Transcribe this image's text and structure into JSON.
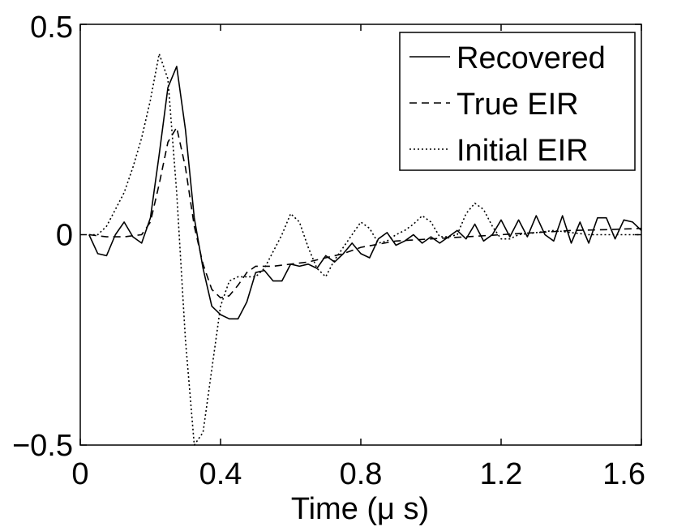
{
  "chart_data": {
    "type": "line",
    "title": "",
    "xlabel": "Time (μ s)",
    "ylabel": "",
    "xlim": [
      0,
      1.6
    ],
    "ylim": [
      -0.5,
      0.5
    ],
    "xticks": [
      0,
      0.4,
      0.8,
      1.2,
      1.6
    ],
    "xtick_labels": [
      "0",
      "0.4",
      "0.8",
      "1.2",
      "1.6"
    ],
    "yticks": [
      -0.5,
      0,
      0.5
    ],
    "ytick_labels": [
      "−0.5",
      "0",
      "0.5"
    ],
    "grid": false,
    "legend_position": "top-right",
    "series": [
      {
        "name": "Recovered",
        "style": "solid",
        "color": "#000000",
        "x": [
          0.025,
          0.05,
          0.075,
          0.1,
          0.125,
          0.15,
          0.175,
          0.2,
          0.225,
          0.25,
          0.275,
          0.3,
          0.325,
          0.35,
          0.375,
          0.4,
          0.425,
          0.45,
          0.475,
          0.5,
          0.525,
          0.55,
          0.575,
          0.6,
          0.625,
          0.65,
          0.675,
          0.7,
          0.725,
          0.75,
          0.775,
          0.8,
          0.825,
          0.85,
          0.875,
          0.9,
          0.925,
          0.95,
          0.975,
          1.0,
          1.025,
          1.05,
          1.075,
          1.1,
          1.125,
          1.15,
          1.175,
          1.2,
          1.225,
          1.25,
          1.275,
          1.3,
          1.325,
          1.35,
          1.375,
          1.4,
          1.425,
          1.45,
          1.475,
          1.5,
          1.525,
          1.55,
          1.575,
          1.6
        ],
        "y": [
          0.0,
          -0.045,
          -0.05,
          0.0,
          0.03,
          -0.005,
          -0.02,
          0.04,
          0.19,
          0.35,
          0.4,
          0.25,
          0.04,
          -0.08,
          -0.17,
          -0.19,
          -0.2,
          -0.2,
          -0.16,
          -0.09,
          -0.085,
          -0.11,
          -0.11,
          -0.07,
          -0.075,
          -0.07,
          -0.08,
          -0.05,
          -0.065,
          -0.045,
          -0.02,
          -0.045,
          -0.055,
          -0.01,
          0.005,
          -0.025,
          -0.015,
          0.0,
          -0.02,
          -0.005,
          -0.02,
          -0.005,
          0.01,
          -0.01,
          0.025,
          -0.015,
          0.0,
          0.035,
          -0.005,
          0.035,
          -0.005,
          0.045,
          0.0,
          -0.015,
          0.045,
          -0.02,
          0.03,
          -0.02,
          0.04,
          0.04,
          -0.01,
          0.035,
          0.03,
          0.01
        ]
      },
      {
        "name": "True EIR",
        "style": "dashed",
        "color": "#000000",
        "x": [
          0.025,
          0.075,
          0.125,
          0.175,
          0.2,
          0.225,
          0.25,
          0.275,
          0.3,
          0.325,
          0.35,
          0.375,
          0.4,
          0.425,
          0.45,
          0.475,
          0.5,
          0.55,
          0.6,
          0.65,
          0.7,
          0.75,
          0.8,
          0.9,
          1.0,
          1.1,
          1.2,
          1.3,
          1.4,
          1.5,
          1.6
        ],
        "y": [
          0.0,
          -0.005,
          -0.005,
          0.0,
          0.03,
          0.12,
          0.22,
          0.255,
          0.16,
          0.02,
          -0.07,
          -0.13,
          -0.15,
          -0.145,
          -0.12,
          -0.09,
          -0.075,
          -0.075,
          -0.07,
          -0.065,
          -0.055,
          -0.045,
          -0.03,
          -0.015,
          -0.01,
          -0.005,
          0.0,
          0.005,
          0.01,
          0.012,
          0.015
        ]
      },
      {
        "name": "Initial EIR",
        "style": "dotted",
        "color": "#000000",
        "x": [
          0.025,
          0.05,
          0.075,
          0.1,
          0.125,
          0.15,
          0.175,
          0.2,
          0.225,
          0.25,
          0.275,
          0.3,
          0.325,
          0.35,
          0.375,
          0.4,
          0.425,
          0.45,
          0.475,
          0.5,
          0.525,
          0.55,
          0.575,
          0.6,
          0.625,
          0.65,
          0.675,
          0.7,
          0.725,
          0.75,
          0.775,
          0.8,
          0.825,
          0.85,
          0.875,
          0.9,
          0.925,
          0.95,
          0.975,
          1.0,
          1.025,
          1.05,
          1.075,
          1.1,
          1.125,
          1.15,
          1.175,
          1.2,
          1.225,
          1.25,
          1.3,
          1.35,
          1.4,
          1.45,
          1.5,
          1.55,
          1.6
        ],
        "y": [
          0.0,
          0.0,
          0.02,
          0.06,
          0.1,
          0.16,
          0.23,
          0.32,
          0.43,
          0.37,
          0.1,
          -0.25,
          -0.5,
          -0.47,
          -0.32,
          -0.17,
          -0.11,
          -0.1,
          -0.1,
          -0.1,
          -0.08,
          -0.04,
          0.0,
          0.05,
          0.03,
          -0.03,
          -0.08,
          -0.1,
          -0.06,
          -0.03,
          0.0,
          0.03,
          0.015,
          -0.02,
          -0.015,
          0.0,
          0.01,
          0.025,
          0.045,
          0.03,
          -0.005,
          -0.005,
          0.0,
          0.05,
          0.075,
          0.06,
          0.02,
          -0.01,
          -0.01,
          0.0,
          0.005,
          0.01,
          0.005,
          0.0,
          0.0,
          0.0,
          0.0
        ]
      }
    ]
  }
}
